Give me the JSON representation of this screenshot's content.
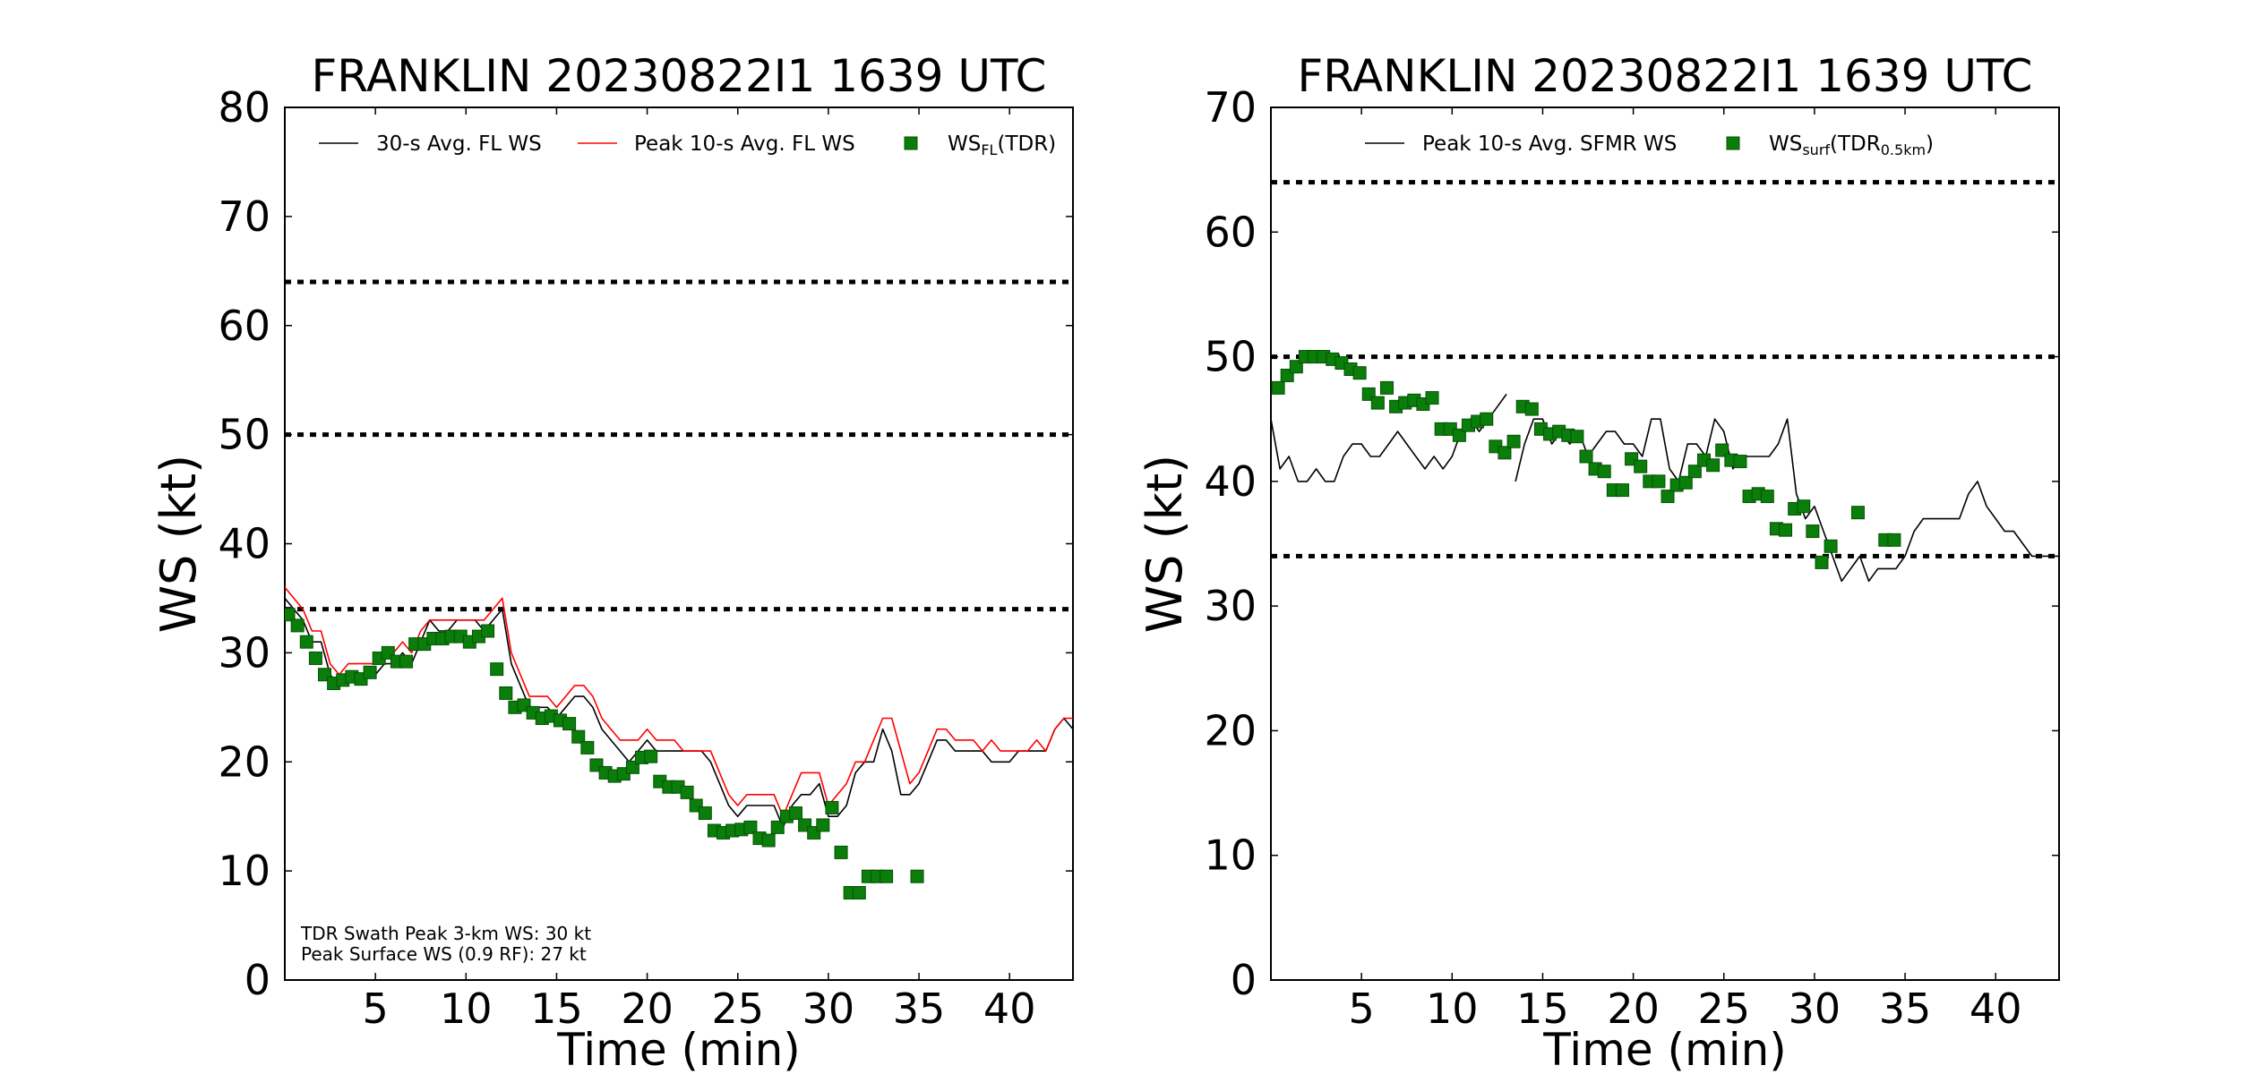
{
  "chart_data": [
    {
      "type": "line",
      "title": "FRANKLIN 20230822I1 1639 UTC",
      "xlabel": "Time (min)",
      "ylabel": "WS (kt)",
      "xlim": [
        0,
        43.5
      ],
      "ylim": [
        0,
        80
      ],
      "xticks": [
        5,
        10,
        15,
        20,
        25,
        30,
        35,
        40
      ],
      "yticks": [
        0,
        10,
        20,
        30,
        40,
        50,
        60,
        70,
        80
      ],
      "grid": false,
      "legend_position": "top",
      "reference_lines": [
        34,
        50,
        64
      ],
      "annotations": [
        "TDR Swath Peak 3-km WS: 30 kt",
        "Peak Surface WS (0.9 RF): 27 kt"
      ],
      "series": [
        {
          "name": "30-s Avg. FL WS",
          "kind": "line",
          "color": "#000000",
          "x": [
            0,
            0.5,
            1,
            1.5,
            2,
            2.5,
            3,
            3.5,
            4,
            4.5,
            5,
            5.5,
            6,
            6.5,
            7,
            7.5,
            8,
            8.5,
            9,
            9.5,
            10,
            10.5,
            11,
            11.5,
            12,
            12.5,
            13,
            13.5,
            14,
            14.5,
            15,
            15.5,
            16,
            16.5,
            17,
            17.5,
            18,
            18.5,
            19,
            19.5,
            20,
            20.5,
            21,
            21.5,
            22,
            22.5,
            23,
            23.5,
            24,
            24.5,
            25,
            25.5,
            26,
            26.5,
            27,
            27.5,
            28,
            28.5,
            29,
            29.5,
            30,
            30.5,
            31,
            31.5,
            32,
            32.5,
            33,
            33.5,
            34,
            34.5,
            35,
            35.5,
            36,
            36.5,
            37,
            37.5,
            38,
            38.5,
            39,
            39.5,
            40,
            40.5,
            41,
            41.5,
            42,
            42.5,
            43,
            43.5
          ],
          "y": [
            35,
            34,
            33,
            31,
            31,
            28,
            27,
            28,
            28,
            28,
            28,
            29,
            29,
            30,
            29,
            31,
            33,
            32,
            32,
            33,
            33,
            33,
            32,
            33,
            34,
            29,
            27,
            25,
            25,
            25,
            24,
            25,
            26,
            26,
            25,
            23,
            22,
            21,
            20,
            21,
            22,
            21,
            21,
            21,
            21,
            21,
            21,
            20,
            18,
            16,
            15,
            16,
            16,
            16,
            16,
            14,
            16,
            17,
            17,
            18,
            15,
            15,
            16,
            19,
            20,
            20,
            23,
            21,
            17,
            17,
            18,
            20,
            22,
            22,
            21,
            21,
            21,
            21,
            20,
            20,
            20,
            21,
            21,
            21,
            21,
            23,
            24,
            23
          ]
        },
        {
          "name": "Peak 10-s Avg. FL WS",
          "kind": "line",
          "color": "#ff0000",
          "x": [
            0,
            0.5,
            1,
            1.5,
            2,
            2.5,
            3,
            3.5,
            4,
            4.5,
            5,
            5.5,
            6,
            6.5,
            7,
            7.5,
            8,
            8.5,
            9,
            9.5,
            10,
            10.5,
            11,
            11.5,
            12,
            12.5,
            13,
            13.5,
            14,
            14.5,
            15,
            15.5,
            16,
            16.5,
            17,
            17.5,
            18,
            18.5,
            19,
            19.5,
            20,
            20.5,
            21,
            21.5,
            22,
            22.5,
            23,
            23.5,
            24,
            24.5,
            25,
            25.5,
            26,
            26.5,
            27,
            27.5,
            28,
            28.5,
            29,
            29.5,
            30,
            30.5,
            31,
            31.5,
            32,
            32.5,
            33,
            33.5,
            34,
            34.5,
            35,
            35.5,
            36,
            36.5,
            37,
            37.5,
            38,
            38.5,
            39,
            39.5,
            40,
            40.5,
            41,
            41.5,
            42,
            42.5,
            43,
            43.5
          ],
          "y": [
            36,
            35,
            34,
            32,
            32,
            29,
            28,
            29,
            29,
            29,
            29,
            30,
            30,
            31,
            30,
            32,
            33,
            33,
            33,
            33,
            33,
            33,
            33,
            34,
            35,
            30,
            28,
            26,
            26,
            26,
            25,
            26,
            27,
            27,
            26,
            24,
            23,
            22,
            22,
            22,
            23,
            22,
            22,
            22,
            21,
            21,
            21,
            21,
            19,
            17,
            16,
            17,
            17,
            17,
            17,
            15,
            17,
            19,
            19,
            19,
            16,
            17,
            18,
            20,
            20,
            22,
            24,
            24,
            21,
            18,
            19,
            21,
            23,
            23,
            22,
            22,
            22,
            21,
            22,
            21,
            21,
            21,
            21,
            22,
            21,
            23,
            24,
            24
          ]
        },
        {
          "name": "WSFL(TDR)",
          "kind": "scatter",
          "color": "#0a7d0a",
          "x": [
            0.2,
            0.7,
            1.2,
            1.7,
            2.2,
            2.7,
            3.2,
            3.7,
            4.2,
            4.7,
            5.2,
            5.7,
            6.2,
            6.7,
            7.2,
            7.7,
            8.2,
            8.7,
            9.2,
            9.7,
            10.2,
            10.7,
            11.2,
            11.7,
            12.2,
            12.7,
            13.2,
            13.7,
            14.2,
            14.7,
            15.2,
            15.7,
            16.2,
            16.7,
            17.2,
            17.7,
            18.2,
            18.7,
            19.2,
            19.7,
            20.2,
            20.7,
            21.2,
            21.7,
            22.2,
            22.7,
            23.2,
            23.7,
            24.2,
            24.7,
            25.2,
            25.7,
            26.2,
            26.7,
            27.2,
            27.7,
            28.2,
            28.7,
            29.2,
            29.7,
            30.2,
            30.7,
            31.2,
            31.7,
            32.2,
            32.7,
            33.2,
            34.9
          ],
          "y": [
            33.5,
            32.5,
            31,
            29.5,
            28,
            27.2,
            27.5,
            27.8,
            27.6,
            28.2,
            29.5,
            30,
            29.2,
            29.2,
            30.8,
            30.8,
            31.3,
            31.3,
            31.5,
            31.5,
            31,
            31.5,
            32,
            28.5,
            26.3,
            25,
            25.2,
            24.5,
            24,
            24.2,
            23.8,
            23.5,
            22.3,
            21.3,
            19.7,
            19,
            18.7,
            18.9,
            19.5,
            20.4,
            20.5,
            18.2,
            17.7,
            17.7,
            17.2,
            16,
            15.3,
            13.7,
            13.5,
            13.7,
            13.8,
            14,
            13,
            12.8,
            14,
            15,
            15.3,
            14.2,
            13.5,
            14.2,
            15.8,
            11.7,
            8,
            8,
            9.5,
            9.5,
            9.5,
            9.5
          ]
        }
      ]
    },
    {
      "type": "line",
      "title": "FRANKLIN 20230822I1 1639 UTC",
      "xlabel": "Time (min)",
      "ylabel": "WS (kt)",
      "xlim": [
        0,
        43.5
      ],
      "ylim": [
        0,
        70
      ],
      "xticks": [
        5,
        10,
        15,
        20,
        25,
        30,
        35,
        40
      ],
      "yticks": [
        0,
        10,
        20,
        30,
        40,
        50,
        60,
        70
      ],
      "grid": false,
      "legend_position": "top",
      "reference_lines": [
        34,
        50,
        64
      ],
      "series": [
        {
          "name": "Peak 10-s Avg. SFMR WS",
          "kind": "line",
          "color": "#000000",
          "segments": [
            {
              "x": [
                0,
                0.5,
                1,
                1.5,
                2,
                2.5,
                3,
                3.5,
                4,
                4.5,
                5,
                5.5,
                6,
                6.5,
                7,
                7.5,
                8,
                8.5,
                9,
                9.5,
                10,
                10.5,
                11,
                11.5,
                12,
                12.5,
                13
              ],
              "y": [
                45,
                41,
                42,
                40,
                40,
                41,
                40,
                40,
                42,
                43,
                43,
                42,
                42,
                43,
                44,
                43,
                42,
                41,
                42,
                41,
                42,
                44,
                45,
                44,
                45,
                46,
                47
              ]
            },
            {
              "x": [
                13.5,
                14,
                14.5,
                15,
                15.5,
                16,
                16.5,
                17,
                17.5,
                18,
                18.5,
                19,
                19.5,
                20,
                20.5,
                21,
                21.5,
                22,
                22.5,
                23,
                23.5,
                24,
                24.5,
                25,
                25.5,
                26,
                26.5,
                27,
                27.5,
                28,
                28.5,
                29,
                29.5,
                30,
                30.5,
                31,
                31.5,
                32,
                32.5,
                33,
                33.5,
                34,
                34.5,
                35,
                35.5,
                36,
                36.5,
                37,
                37.5,
                38,
                38.5,
                39,
                39.5,
                40,
                40.5,
                41,
                41.5,
                42,
                42.5,
                43,
                43.5
              ],
              "y": [
                40,
                43,
                45,
                45,
                43,
                44,
                43,
                44,
                42,
                43,
                44,
                44,
                43,
                43,
                42,
                45,
                45,
                41,
                40,
                43,
                43,
                42,
                45,
                44,
                41,
                42,
                42,
                42,
                42,
                43,
                45,
                39,
                37,
                38,
                36,
                34,
                32,
                33,
                34,
                32,
                33,
                33,
                33,
                34,
                36,
                37,
                37,
                37,
                37,
                37,
                39,
                40,
                38,
                37,
                36,
                36,
                35,
                34,
                34,
                34,
                34
              ]
            }
          ]
        },
        {
          "name": "WSsurf(TDR0.5km)",
          "kind": "scatter",
          "color": "#0a7d0a",
          "x": [
            0.4,
            0.9,
            1.4,
            1.9,
            2.4,
            2.9,
            3.4,
            3.9,
            4.4,
            4.9,
            5.4,
            5.9,
            6.4,
            6.9,
            7.4,
            7.9,
            8.4,
            8.9,
            9.4,
            9.9,
            10.4,
            10.9,
            11.4,
            11.9,
            12.4,
            12.9,
            13.4,
            13.9,
            14.4,
            14.9,
            15.4,
            15.9,
            16.4,
            16.9,
            17.4,
            17.9,
            18.4,
            18.9,
            19.4,
            19.9,
            20.4,
            20.9,
            21.4,
            21.9,
            22.4,
            22.9,
            23.4,
            23.9,
            24.4,
            24.9,
            25.4,
            25.9,
            26.4,
            26.9,
            27.4,
            27.9,
            28.4,
            28.9,
            29.4,
            29.9,
            30.4,
            30.9,
            32.4,
            33.9,
            34.4
          ],
          "y": [
            47.5,
            48.5,
            49.2,
            50,
            50,
            50,
            49.8,
            49.5,
            49,
            48.7,
            47,
            46.3,
            47.5,
            46,
            46.3,
            46.5,
            46.2,
            46.7,
            44.2,
            44.2,
            43.7,
            44.5,
            44.8,
            45,
            42.8,
            42.3,
            43.2,
            46,
            45.8,
            44.2,
            43.8,
            44,
            43.7,
            43.6,
            42,
            41,
            40.8,
            39.3,
            39.3,
            41.8,
            41.2,
            40,
            40,
            38.8,
            39.7,
            39.9,
            40.8,
            41.7,
            41.3,
            42.5,
            41.7,
            41.6,
            38.8,
            39,
            38.8,
            36.2,
            36.1,
            37.8,
            38,
            36,
            33.5,
            34.8,
            37.5,
            35.3,
            35.3
          ]
        }
      ]
    }
  ]
}
